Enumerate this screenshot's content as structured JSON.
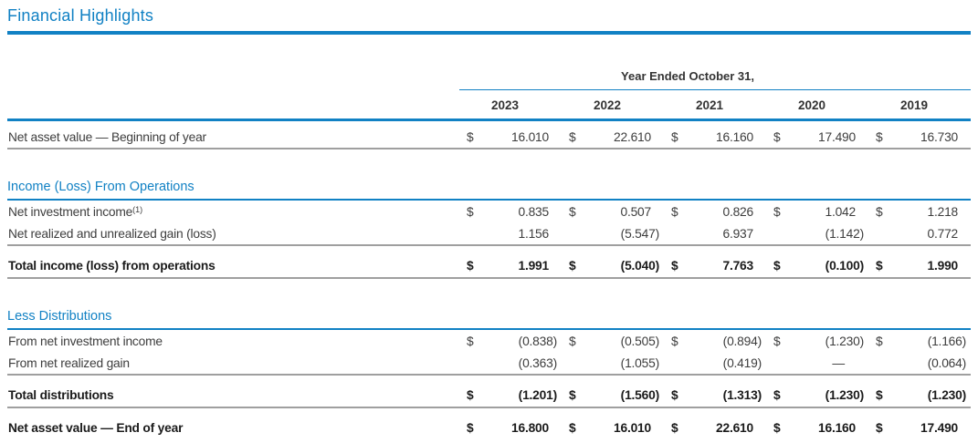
{
  "page_title": "Financial Highlights",
  "colors": {
    "accent_blue": "#1181c4",
    "rule_gray": "#9f9f9f",
    "text_regular": "#3d3d3d",
    "text_bold": "#1b1b1b"
  },
  "table": {
    "span_header": "Year Ended October 31,",
    "years": [
      "2023",
      "2022",
      "2021",
      "2020",
      "2019"
    ],
    "rows": [
      {
        "kind": "row",
        "label": "Net asset value — Beginning of year",
        "footnote": "",
        "dollar": true,
        "values": [
          "16.010",
          "22.610",
          "16.160",
          "17.490",
          "16.730"
        ],
        "rule": true
      },
      {
        "kind": "section",
        "label": "Income (Loss) From Operations"
      },
      {
        "kind": "row",
        "label": "Net investment income",
        "footnote": "(1)",
        "dollar": true,
        "values": [
          "0.835",
          "0.507",
          "0.826",
          "1.042",
          "1.218"
        ],
        "rule": false
      },
      {
        "kind": "row",
        "label": "Net realized and unrealized gain (loss)",
        "footnote": "",
        "dollar": false,
        "values": [
          "1.156",
          "(5.547)",
          "6.937",
          "(1.142)",
          "0.772"
        ],
        "rule": true
      },
      {
        "kind": "total",
        "label": "Total income (loss) from operations",
        "footnote": "",
        "dollar": true,
        "values": [
          "1.991",
          "(5.040)",
          "7.763",
          "(0.100)",
          "1.990"
        ],
        "rule": true
      },
      {
        "kind": "section",
        "label": "Less Distributions"
      },
      {
        "kind": "row",
        "label": "From net investment income",
        "footnote": "",
        "dollar": true,
        "values": [
          "(0.838)",
          "(0.505)",
          "(0.894)",
          "(1.230)",
          "(1.166)"
        ],
        "rule": false
      },
      {
        "kind": "row",
        "label": "From net realized gain",
        "footnote": "",
        "dollar": false,
        "values": [
          "(0.363)",
          "(1.055)",
          "(0.419)",
          "—",
          "(0.064)"
        ],
        "rule": true
      },
      {
        "kind": "total",
        "label": "Total distributions",
        "footnote": "",
        "dollar": true,
        "values": [
          "(1.201)",
          "(1.560)",
          "(1.313)",
          "(1.230)",
          "(1.230)"
        ],
        "rule": true
      },
      {
        "kind": "total",
        "label": "Net asset value — End of year",
        "footnote": "",
        "dollar": true,
        "values": [
          "16.800",
          "16.010",
          "22.610",
          "16.160",
          "17.490"
        ],
        "rule": false
      }
    ]
  }
}
